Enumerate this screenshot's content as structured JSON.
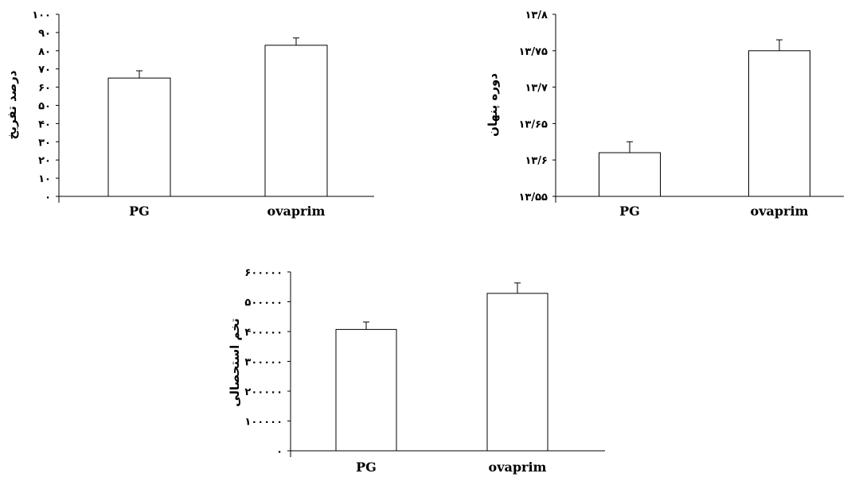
{
  "chart_data": [
    {
      "type": "bar",
      "categories": [
        "PG",
        "ovaprim"
      ],
      "values": [
        65,
        83
      ],
      "errors": [
        4,
        4
      ],
      "ylabel": "درصد تفریخ",
      "ylim": [
        0,
        100
      ],
      "yticks": [
        0,
        10,
        20,
        30,
        40,
        50,
        60,
        70,
        80,
        90,
        100
      ],
      "ytick_labels": [
        "۰",
        "۱۰",
        "۲۰",
        "۳۰",
        "۴۰",
        "۵۰",
        "۶۰",
        "۷۰",
        "۸۰",
        "۹۰",
        "۱۰۰"
      ],
      "bar_color": "#ffffff",
      "grid": false
    },
    {
      "type": "bar",
      "categories": [
        "PG",
        "ovaprim"
      ],
      "values": [
        13.61,
        13.75
      ],
      "errors": [
        0.015,
        0.015
      ],
      "ylabel": "دوره پنهان",
      "ylim": [
        13.55,
        13.8
      ],
      "yticks": [
        13.55,
        13.6,
        13.65,
        13.7,
        13.75,
        13.8
      ],
      "ytick_labels": [
        "۱۳/۵۵",
        "۱۳/۶",
        "۱۳/۶۵",
        "۱۳/۷",
        "۱۳/۷۵",
        "۱۳/۸"
      ],
      "bar_color": "#ffffff",
      "grid": false
    },
    {
      "type": "bar",
      "categories": [
        "PG",
        "ovaprim"
      ],
      "values": [
        407000,
        528000
      ],
      "errors": [
        25000,
        35000
      ],
      "ylabel": "تخم استحصالی",
      "ylim": [
        0,
        600000
      ],
      "yticks": [
        0,
        100000,
        200000,
        300000,
        400000,
        500000,
        600000
      ],
      "ytick_labels": [
        "۰",
        "۱۰۰۰۰۰",
        "۲۰۰۰۰۰",
        "۳۰۰۰۰۰",
        "۴۰۰۰۰۰",
        "۵۰۰۰۰۰",
        "۶۰۰۰۰۰"
      ],
      "bar_color": "#ffffff",
      "grid": false
    }
  ]
}
